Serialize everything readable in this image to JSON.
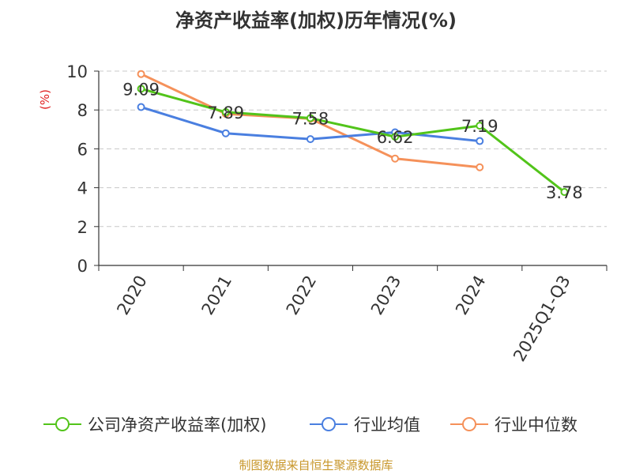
{
  "title": "净资产收益率(加权)历年情况(%)",
  "source": "制图数据来自恒生聚源数据库",
  "chart_data": {
    "type": "line",
    "categories": [
      "2020",
      "2021",
      "2022",
      "2023",
      "2024",
      "2025Q1-Q3"
    ],
    "ylabel": "(%)",
    "ylabel_color": "#e02020",
    "ylim": [
      0,
      10
    ],
    "yticks": [
      0,
      2,
      4,
      6,
      8,
      10
    ],
    "grid": true,
    "legend_position": "bottom",
    "series": [
      {
        "name": "公司净资产收益率(加权)",
        "color": "#52c41a",
        "values": [
          9.09,
          7.89,
          7.58,
          6.62,
          7.19,
          3.78
        ],
        "labels": [
          "9.09",
          "7.89",
          "7.58",
          "6.62",
          "7.19",
          "3.78"
        ]
      },
      {
        "name": "行业均值",
        "color": "#4a7fe0",
        "values": [
          8.15,
          6.8,
          6.5,
          6.85,
          6.4,
          null
        ]
      },
      {
        "name": "行业中位数",
        "color": "#f5915a",
        "values": [
          9.85,
          7.8,
          7.55,
          5.5,
          5.05,
          null
        ]
      }
    ]
  }
}
